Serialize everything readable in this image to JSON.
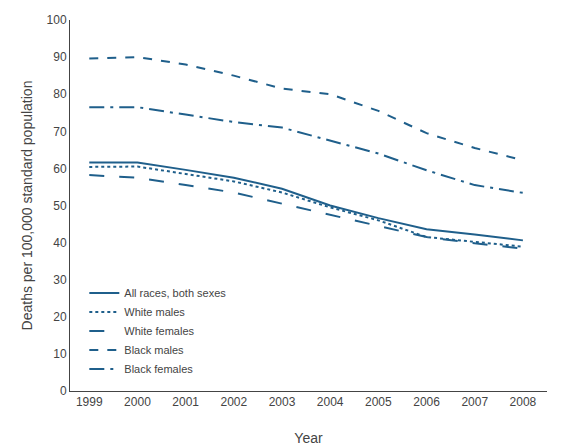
{
  "chart_data": {
    "type": "line",
    "x": [
      1999,
      2000,
      2001,
      2002,
      2003,
      2004,
      2005,
      2006,
      2007,
      2008
    ],
    "series": [
      {
        "name": "All races, both sexes",
        "line_style": "solid",
        "values": [
          61.6,
          61.6,
          59.6,
          57.5,
          54.5,
          50.0,
          46.6,
          43.6,
          42.2,
          40.6
        ]
      },
      {
        "name": "White males",
        "line_style": "dot",
        "values": [
          60.4,
          60.5,
          58.5,
          56.5,
          53.5,
          49.5,
          46.0,
          41.5,
          40.2,
          38.9
        ]
      },
      {
        "name": "White females",
        "line_style": "longdash",
        "values": [
          58.2,
          57.5,
          55.5,
          53.5,
          50.5,
          47.5,
          44.5,
          41.5,
          39.8,
          38.4
        ]
      },
      {
        "name": "Black males",
        "line_style": "dash",
        "values": [
          89.6,
          90.0,
          88.0,
          85.0,
          81.5,
          80.0,
          75.5,
          69.5,
          65.5,
          62.2
        ]
      },
      {
        "name": "Black females",
        "line_style": "longdashdot",
        "values": [
          76.5,
          76.5,
          74.5,
          72.5,
          71.0,
          67.5,
          64.0,
          59.5,
          55.5,
          53.4
        ]
      }
    ],
    "color": "#1f5f8b",
    "xlabel": "Year",
    "ylabel": "Deaths per 100,000 standard population",
    "xlim": [
      1998.6,
      2008.5
    ],
    "xticks": [
      1999,
      2000,
      2001,
      2002,
      2003,
      2004,
      2005,
      2006,
      2007,
      2008
    ],
    "ylim": [
      0,
      100
    ],
    "yticks": [
      0,
      10,
      20,
      30,
      40,
      50,
      60,
      70,
      80,
      90,
      100
    ],
    "grid": false,
    "legend": "lower left"
  }
}
